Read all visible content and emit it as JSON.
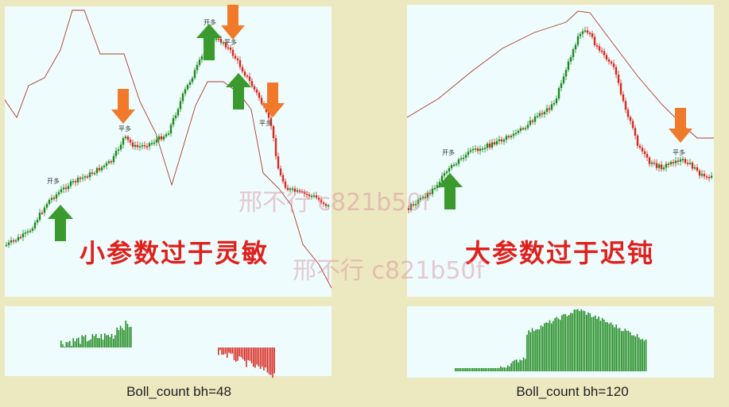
{
  "left": {
    "title": "小参数过于灵敏",
    "caption": "Boll_count bh=48",
    "signals": {
      "open_long": "开多",
      "close_long": "平多"
    }
  },
  "right": {
    "title": "大参数过于迟钝",
    "caption": "Boll_count bh=120",
    "signals": {
      "open_long": "开多",
      "close_long": "平多"
    }
  },
  "watermark": "邢不行 c821b50f",
  "colors": {
    "panel_bg": "#eefcfd",
    "page_bg": "#ece8c0",
    "candle_up": "#1f8a1f",
    "candle_down": "#d9281e",
    "band_line": "#b23a2a",
    "buy_arrow": "#3a9a2e",
    "sell_arrow": "#f07a2a",
    "title_text": "#e0201c"
  },
  "icons": {
    "buy": "up-arrow-icon",
    "sell": "down-arrow-icon"
  }
}
